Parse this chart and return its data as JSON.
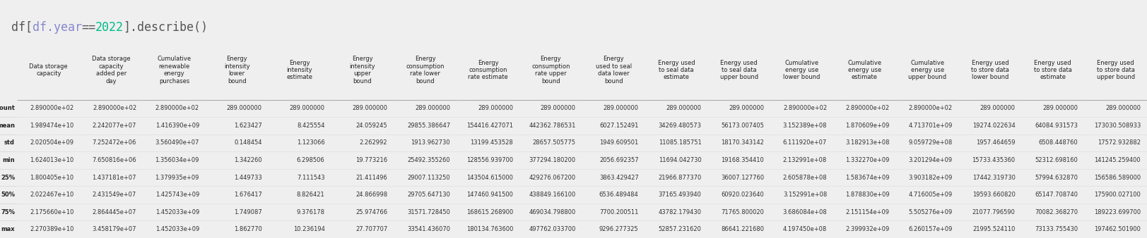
{
  "title_parts": [
    {
      "text": "df[",
      "color": "#555555"
    },
    {
      "text": "df.year",
      "color": "#8888cc"
    },
    {
      "text": "==",
      "color": "#555555"
    },
    {
      "text": "2022",
      "color": "#00bb88"
    },
    {
      "text": "].describe()",
      "color": "#555555"
    }
  ],
  "columns": [
    "Data storage\ncapacity",
    "Data storage\ncapacity\nadded per\nday",
    "Cumulative\nrenewable\nenergy\npurchases",
    "Energy\nintensity\nlower\nbound",
    "Energy\nintensity\nestimate",
    "Energy\nintensity\nupper\nbound",
    "Energy\nconsumption\nrate lower\nbound",
    "Energy\nconsumption\nrate estimate",
    "Energy\nconsumption\nrate upper\nbound",
    "Energy\nused to seal\ndata lower\nbound",
    "Energy used\nto seal data\nestimate",
    "Energy used\nto seal data\nupper bound",
    "Cumulative\nenergy use\nlower bound",
    "Cumulative\nenergy use\nestimate",
    "Cumulative\nenergy use\nupper bound",
    "Energy used\nto store data\nlower bound",
    "Energy used\nto store data\nestimate",
    "Energy used\nto store data\nupper bound"
  ],
  "row_labels": [
    "count",
    "mean",
    "std",
    "min",
    "25%",
    "50%",
    "75%",
    "max"
  ],
  "data": [
    [
      "2.890000e+02",
      "2.890000e+02",
      "2.890000e+02",
      "289.000000",
      "289.000000",
      "289.000000",
      "289.000000",
      "289.000000",
      "289.000000",
      "289.000000",
      "289.000000",
      "289.000000",
      "2.890000e+02",
      "2.890000e+02",
      "2.890000e+02",
      "289.000000",
      "289.000000",
      "289.000000"
    ],
    [
      "1.989474e+10",
      "2.242077e+07",
      "1.416390e+09",
      "1.623427",
      "8.425554",
      "24.059245",
      "29855.386647",
      "154416.427071",
      "442362.786531",
      "6027.152491",
      "34269.480573",
      "56173.007405",
      "3.152389e+08",
      "1.870609e+09",
      "4.713701e+09",
      "19274.022634",
      "64084.931573",
      "173030.508933"
    ],
    [
      "2.020504e+09",
      "7.252472e+06",
      "3.560490e+07",
      "0.148454",
      "1.123066",
      "2.262992",
      "1913.962730",
      "13199.453528",
      "28657.505775",
      "1949.609501",
      "11085.185751",
      "18170.343142",
      "6.111920e+07",
      "3.182913e+08",
      "9.059729e+08",
      "1957.464659",
      "6508.448760",
      "17572.932882"
    ],
    [
      "1.624013e+10",
      "7.650816e+06",
      "1.356034e+09",
      "1.342260",
      "6.298506",
      "19.773216",
      "25492.355260",
      "128556.939700",
      "377294.180200",
      "2056.692357",
      "11694.042730",
      "19168.354410",
      "2.132991e+08",
      "1.332270e+09",
      "3.201294e+09",
      "15733.435360",
      "52312.698160",
      "141245.259400"
    ],
    [
      "1.800405e+10",
      "1.437181e+07",
      "1.379935e+09",
      "1.449733",
      "7.111543",
      "21.411496",
      "29007.113250",
      "143504.615000",
      "429276.067200",
      "3863.429427",
      "21966.877370",
      "36007.127760",
      "2.605878e+08",
      "1.583674e+09",
      "3.903182e+09",
      "17442.319730",
      "57994.632870",
      "156586.589000"
    ],
    [
      "2.022467e+10",
      "2.431549e+07",
      "1.425743e+09",
      "1.676417",
      "8.826421",
      "24.866998",
      "29705.647130",
      "147460.941500",
      "438849.166100",
      "6536.489484",
      "37165.493940",
      "60920.023640",
      "3.152991e+08",
      "1.878830e+09",
      "4.716005e+09",
      "19593.660820",
      "65147.708740",
      "175900.027100"
    ],
    [
      "2.175660e+10",
      "2.864445e+07",
      "1.452033e+09",
      "1.749087",
      "9.376178",
      "25.974766",
      "31571.728450",
      "168615.268900",
      "469034.798800",
      "7700.200511",
      "43782.179430",
      "71765.800020",
      "3.686084e+08",
      "2.151154e+09",
      "5.505276e+09",
      "21077.796590",
      "70082.368270",
      "189223.699700"
    ],
    [
      "2.270389e+10",
      "3.458179e+07",
      "1.452033e+09",
      "1.862770",
      "10.236194",
      "27.707707",
      "33541.436070",
      "180134.763600",
      "497762.033700",
      "9296.277325",
      "52857.231620",
      "86641.221680",
      "4.197450e+08",
      "2.399932e+09",
      "6.260157e+09",
      "21995.524110",
      "73133.755430",
      "197462.501900"
    ]
  ],
  "background_color": "#efefef",
  "cell_bg_color": "#ffffff",
  "header_color": "#222222",
  "font_size": 6.0,
  "header_font_size": 6.0,
  "title_fontsize": 12
}
